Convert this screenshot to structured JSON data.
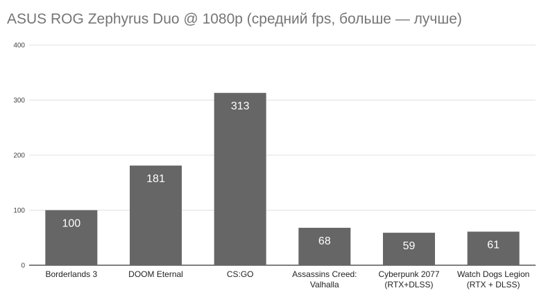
{
  "chart_data": {
    "type": "bar",
    "title": "ASUS ROG Zephyrus Duo @ 1080p (средний fps, больше — лучше)",
    "categories": [
      [
        "Borderlands 3"
      ],
      [
        "DOOM Eternal"
      ],
      [
        "CS:GO"
      ],
      [
        "Assassins Creed:",
        "Valhalla"
      ],
      [
        "Cyberpunk 2077",
        "(RTX+DLSS)"
      ],
      [
        "Watch Dogs Legion",
        "(RTX + DLSS)"
      ]
    ],
    "values": [
      100,
      181,
      313,
      68,
      59,
      61
    ],
    "data_labels": [
      "100",
      "181",
      "313",
      "68",
      "59",
      "61"
    ],
    "yticks": [
      0,
      100,
      200,
      300,
      400
    ],
    "ytick_labels": [
      "0",
      "100",
      "200",
      "300",
      "400"
    ],
    "ylim": [
      0,
      400
    ],
    "xlabel": "",
    "ylabel": "",
    "grid": true,
    "legend": "none",
    "colors": {
      "bar": "#666666",
      "grid": "#e0e0e0",
      "axis": "#333333",
      "title": "#757575",
      "value_label": "#ffffff"
    }
  }
}
